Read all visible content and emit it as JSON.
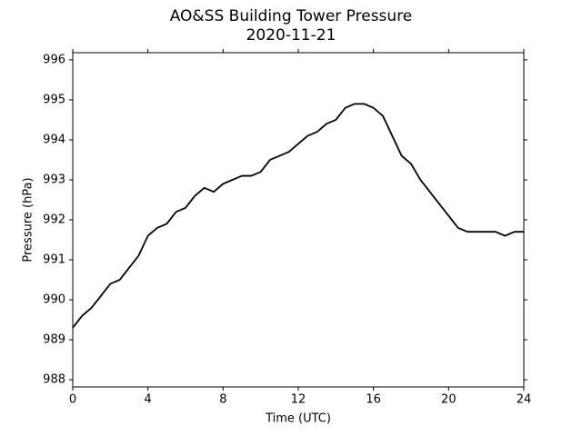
{
  "chart_data": {
    "type": "line",
    "title": "AO&SS Building Tower Pressure",
    "subtitle": "2020-11-21",
    "x_label": "Time (UTC)",
    "y_label": "Pressure (hPa)",
    "x": [
      0,
      0.5,
      1,
      1.5,
      2,
      2.5,
      3,
      3.5,
      4,
      4.5,
      5,
      5.5,
      6,
      6.5,
      7,
      7.5,
      8,
      8.5,
      9,
      9.5,
      10,
      10.5,
      11,
      11.5,
      12,
      12.5,
      13,
      13.5,
      14,
      14.5,
      15,
      15.5,
      16,
      16.5,
      17,
      17.5,
      18,
      18.5,
      19,
      19.5,
      20,
      20.5,
      21,
      21.5,
      22,
      22.5,
      23,
      23.5,
      24
    ],
    "series": [
      {
        "name": "Pressure",
        "color": "#000000",
        "values": [
          989.3,
          989.6,
          989.8,
          990.1,
          990.4,
          990.5,
          990.8,
          991.1,
          991.6,
          991.8,
          991.9,
          992.2,
          992.3,
          992.6,
          992.8,
          992.7,
          992.9,
          993.0,
          993.1,
          993.1,
          993.2,
          993.5,
          993.6,
          993.7,
          993.9,
          994.1,
          994.2,
          994.4,
          994.5,
          994.8,
          994.9,
          994.9,
          994.8,
          994.6,
          994.1,
          993.6,
          993.4,
          993.0,
          992.7,
          992.4,
          992.1,
          991.8,
          991.7,
          991.7,
          991.7,
          991.7,
          991.6,
          991.7,
          991.7
        ]
      }
    ],
    "xlim": [
      0,
      24
    ],
    "xticks": [
      0,
      4,
      8,
      12,
      16,
      20,
      24
    ],
    "ylim": [
      987.82,
      996.18
    ],
    "yticks": [
      988,
      989,
      990,
      991,
      992,
      993,
      994,
      995,
      996
    ],
    "grid": false
  }
}
